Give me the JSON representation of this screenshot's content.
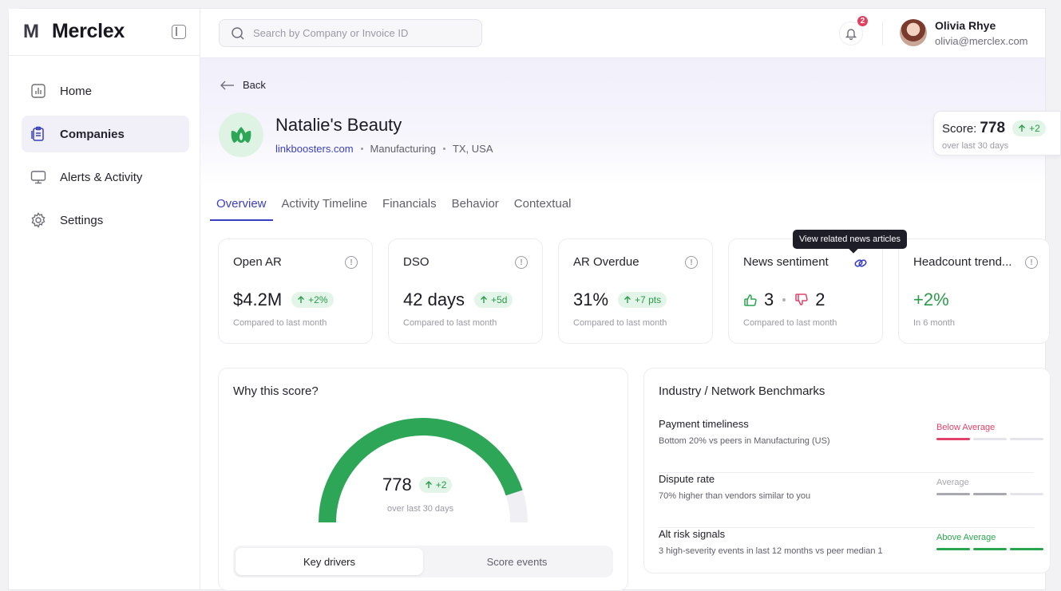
{
  "brand": {
    "mark": "M",
    "name": "Merclex"
  },
  "sidebar": {
    "items": [
      {
        "label": "Home",
        "icon": "chart-bars-icon",
        "active": false
      },
      {
        "label": "Companies",
        "icon": "clipboard-icon",
        "active": true
      },
      {
        "label": "Alerts & Activity",
        "icon": "monitor-icon",
        "active": false
      },
      {
        "label": "Settings",
        "icon": "gear-icon",
        "active": false
      }
    ]
  },
  "search": {
    "placeholder": "Search by Company or Invoice ID",
    "value": ""
  },
  "notifications": {
    "count": "2"
  },
  "user": {
    "name": "Olivia Rhye",
    "email": "olivia@merclex.com"
  },
  "hero": {
    "back_label": "Back",
    "company_name": "Natalie's Beauty",
    "website": "linkboosters.com",
    "industry": "Manufacturing",
    "location": "TX, USA",
    "score_label": "Score:",
    "score_value": "778",
    "score_change": "+2",
    "score_period": "over last 30 days"
  },
  "tabs": [
    {
      "label": "Overview",
      "active": true
    },
    {
      "label": "Activity Timeline",
      "active": false
    },
    {
      "label": "Financials",
      "active": false
    },
    {
      "label": "Behavior",
      "active": false
    },
    {
      "label": "Contextual",
      "active": false
    }
  ],
  "kpis": {
    "open_ar": {
      "title": "Open AR",
      "value": "$4.2M",
      "change": "+2%",
      "sub": "Compared to last month"
    },
    "dso": {
      "title": "DSO",
      "value": "42 days",
      "change": "+5d",
      "sub": "Compared to last month"
    },
    "ar_overdue": {
      "title": "AR Overdue",
      "value": "31%",
      "change": "+7 pts",
      "sub": "Compared to last month"
    },
    "news": {
      "title": "News sentiment",
      "positive": "3",
      "negative": "2",
      "sub": "Compared to last month",
      "tooltip": "View related news articles"
    },
    "headcount": {
      "title": "Headcount trend...",
      "value": "+2%",
      "sub": "In 6 month"
    }
  },
  "why_score": {
    "title": "Why this score?",
    "value": "778",
    "change": "+2",
    "period": "over last 30 days",
    "gauge_fraction": 0.9,
    "segments": [
      "Key drivers",
      "Score events"
    ]
  },
  "benchmarks": {
    "title": "Industry / Network Benchmarks",
    "rows": [
      {
        "name": "Payment timeliness",
        "desc": "Bottom 20% vs peers in Manufacturing (US)",
        "level": "Below Average",
        "color": "#e0426a",
        "filled": 1
      },
      {
        "name": "Dispute rate",
        "desc": "70% higher than vendors similar to you",
        "level": "Average",
        "color": "#a8a8b0",
        "filled": 2
      },
      {
        "name": "Alt risk signals",
        "desc": "3 high-severity events in last 12 months vs peer median 1",
        "level": "Above Average",
        "color": "#2aa54f",
        "filled": 3
      }
    ]
  },
  "colors": {
    "accent": "#3a3fc2",
    "positive": "#2a9a4a",
    "gauge": "#2ea657"
  }
}
